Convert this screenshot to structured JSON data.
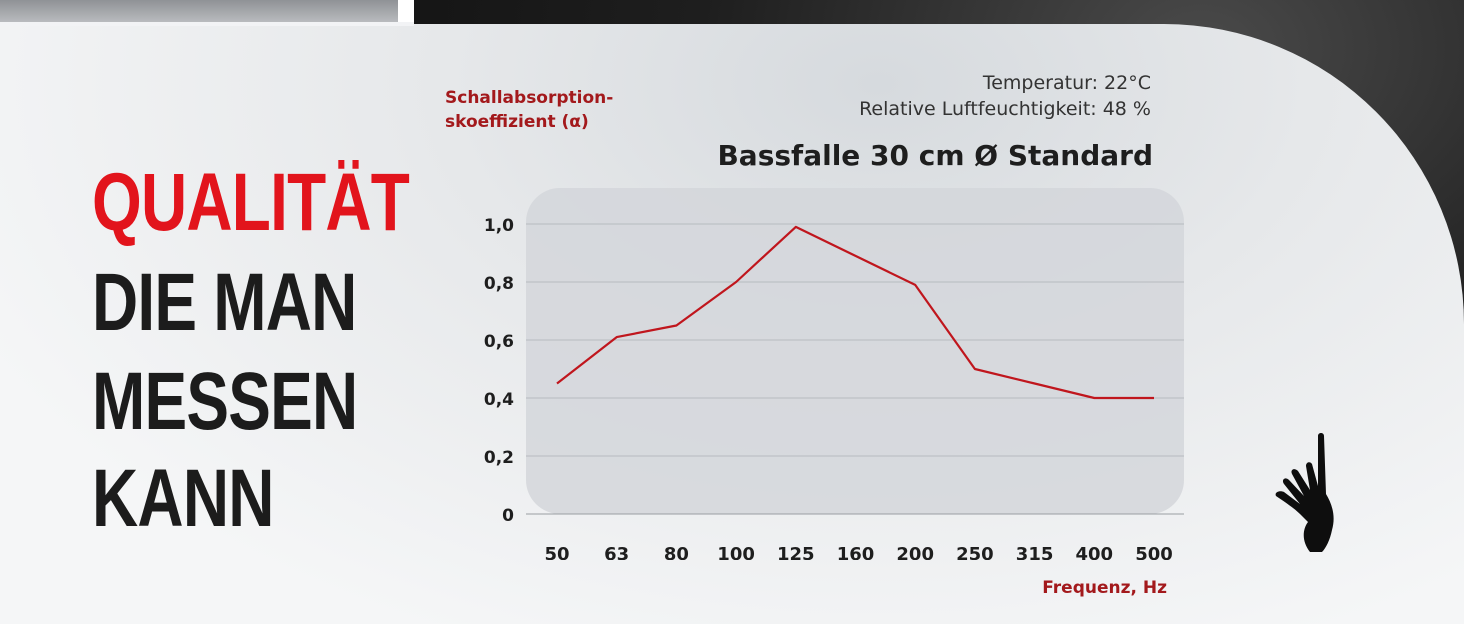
{
  "headline": {
    "line1": "QUALITÄT",
    "line2": "DIE MAN",
    "line3": "MESSEN",
    "line4": "KANN"
  },
  "conditions": {
    "temperature": "Temperatur: 22°C",
    "humidity": "Relative Luftfeuchtigkeit: 48 %"
  },
  "icons": {
    "hand": "hand-touch-icon"
  },
  "colors": {
    "accent_red": "#e2141c",
    "label_red": "#a3191c",
    "line_red": "#c0161d",
    "dark_text": "#1c1c1c"
  },
  "chart_data": {
    "type": "line",
    "title": "Bassfalle 30 cm Ø Standard",
    "ylabel_line1": "Schallabsorption-",
    "ylabel_line2": "skoeffizient (α)",
    "xlabel": "Frequenz, Hz",
    "categories": [
      "50",
      "63",
      "80",
      "100",
      "125",
      "160",
      "200",
      "250",
      "315",
      "400",
      "500"
    ],
    "series": [
      {
        "values": [
          0.45,
          0.61,
          0.65,
          0.8,
          0.99,
          0.89,
          0.79,
          0.5,
          0.45,
          0.4,
          0.4
        ]
      }
    ],
    "ylim": [
      0,
      1.0
    ],
    "yticks": [
      0,
      0.2,
      0.4,
      0.6,
      0.8,
      1.0
    ],
    "ytick_labels": [
      "0",
      "0,2",
      "0,4",
      "0,6",
      "0,8",
      "1,0"
    ],
    "grid": true
  }
}
